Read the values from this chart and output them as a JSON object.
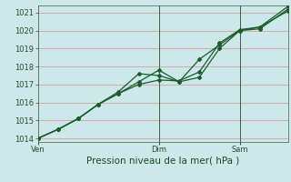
{
  "title": "Pression niveau de la mer( hPa )",
  "bg_color": "#cce8e8",
  "grid_color": "#d4a0a0",
  "line_color": "#1a5c2a",
  "ylim": [
    1013.8,
    1021.4
  ],
  "yticks": [
    1014,
    1015,
    1016,
    1017,
    1018,
    1019,
    1020,
    1021
  ],
  "xtick_labels": [
    "Ven",
    "Dim",
    "Sam"
  ],
  "xtick_positions": [
    0,
    3,
    5
  ],
  "xlim": [
    0,
    6.2
  ],
  "series1_x": [
    0,
    0.5,
    1.0,
    1.5,
    2.0,
    2.5,
    3.0,
    3.5,
    4.0,
    4.5,
    5.0,
    5.5,
    6.2
  ],
  "series1_y": [
    1014.0,
    1014.5,
    1015.1,
    1015.9,
    1016.6,
    1017.6,
    1017.5,
    1017.15,
    1018.4,
    1019.2,
    1020.0,
    1020.1,
    1021.2
  ],
  "series2_x": [
    0,
    0.5,
    1.0,
    1.5,
    2.0,
    2.5,
    3.0,
    3.5,
    4.0,
    4.5,
    5.0,
    5.5,
    6.2
  ],
  "series2_y": [
    1014.0,
    1014.5,
    1015.1,
    1015.9,
    1016.5,
    1017.15,
    1017.8,
    1017.15,
    1017.4,
    1019.0,
    1020.0,
    1020.2,
    1021.35
  ],
  "series3_x": [
    0,
    0.5,
    1.0,
    1.5,
    2.0,
    2.5,
    3.0,
    3.5,
    4.0,
    4.5,
    5.0,
    5.5,
    6.2
  ],
  "series3_y": [
    1014.0,
    1014.5,
    1015.1,
    1015.9,
    1016.5,
    1017.0,
    1017.25,
    1017.2,
    1017.7,
    1019.3,
    1020.05,
    1020.2,
    1021.1
  ],
  "vlines_x": [
    3.0,
    5.0
  ],
  "xlabel_fontsize": 7.5,
  "tick_fontsize": 6.0,
  "marker": "D",
  "markersize": 2.0
}
